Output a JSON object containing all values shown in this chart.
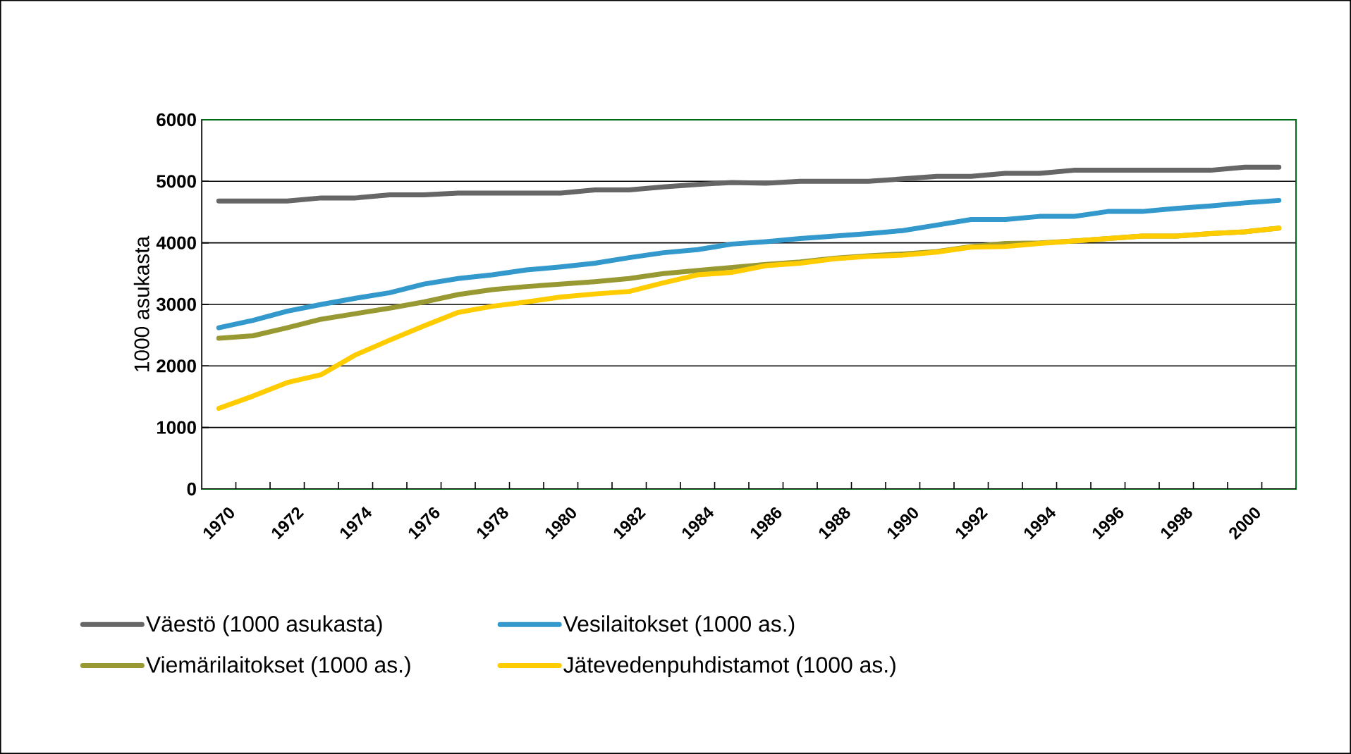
{
  "chart_data": {
    "type": "line",
    "ylabel": "1000 asukasta",
    "categories": [
      "1970",
      null,
      "1972",
      null,
      "1974",
      null,
      "1976",
      null,
      "1978",
      null,
      "1980",
      null,
      "1982",
      null,
      "1984",
      null,
      "1986",
      null,
      "1988",
      null,
      "1990",
      null,
      "1992",
      null,
      "1994",
      null,
      "1996",
      null,
      "1998",
      null,
      "2000",
      null
    ],
    "series": [
      {
        "name": "Väestö (1000 asukasta)",
        "color": "#666666",
        "values": [
          4680,
          4680,
          4680,
          4730,
          4730,
          4780,
          4780,
          4810,
          4810,
          4810,
          4810,
          4860,
          4860,
          4910,
          4950,
          4980,
          4970,
          5000,
          5000,
          5000,
          5040,
          5080,
          5080,
          5130,
          5130,
          5180,
          5180,
          5180,
          5180,
          5180,
          5230,
          5230
        ]
      },
      {
        "name": "Vesilaitokset (1000 as.)",
        "color": "#3399cc",
        "values": [
          2620,
          2740,
          2890,
          3000,
          3100,
          3190,
          3330,
          3420,
          3480,
          3560,
          3610,
          3670,
          3760,
          3840,
          3890,
          3980,
          4020,
          4070,
          4110,
          4150,
          4200,
          4290,
          4380,
          4380,
          4430,
          4430,
          4510,
          4510,
          4560,
          4600,
          4650,
          4690
        ]
      },
      {
        "name": "Viemärilaitokset (1000 as.)",
        "color": "#999933",
        "values": [
          2450,
          2490,
          2620,
          2760,
          2850,
          2940,
          3040,
          3160,
          3240,
          3290,
          3330,
          3370,
          3420,
          3500,
          3550,
          3600,
          3650,
          3690,
          3750,
          3790,
          3820,
          3860,
          3940,
          3990,
          4000,
          4030,
          4070,
          4110,
          4110,
          4150,
          4180,
          4240
        ]
      },
      {
        "name": "Jätevedenpuhdistamot (1000 as.)",
        "color": "#ffcc00",
        "values": [
          1310,
          1510,
          1730,
          1860,
          2180,
          2420,
          2650,
          2870,
          2970,
          3040,
          3120,
          3170,
          3210,
          3350,
          3480,
          3520,
          3630,
          3670,
          3740,
          3780,
          3800,
          3850,
          3930,
          3940,
          3990,
          4030,
          4070,
          4110,
          4110,
          4150,
          4180,
          4240
        ]
      }
    ],
    "ylim": [
      0,
      6000
    ],
    "yticks": [
      0,
      1000,
      2000,
      3000,
      4000,
      5000,
      6000
    ],
    "grid": "y",
    "legend": "bottom",
    "marker": "none",
    "line_style": "solid"
  }
}
